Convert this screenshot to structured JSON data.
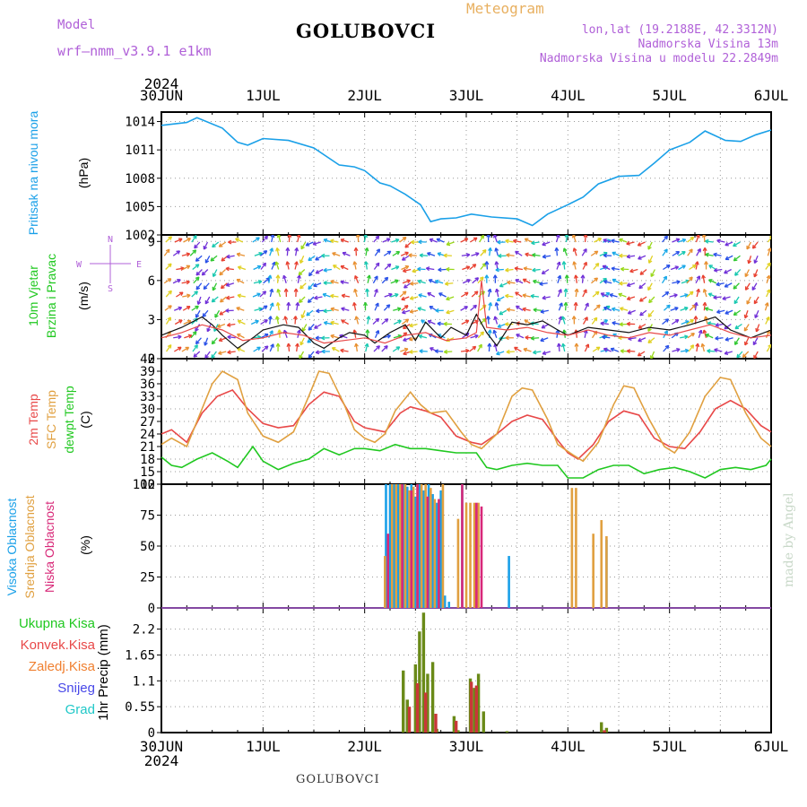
{
  "header": {
    "model_label": "Model",
    "model_name": "wrf—nmm_v3.9.1  e1km",
    "station": "GOLUBOVCI",
    "meteogram": "Meteogram",
    "lonlat": "lon,lat (19.2188E, 42.3312N)",
    "elevation": "Nadmorska Visina 13m",
    "elevation_model": "Nadmorska Visina u modelu 22.2849m"
  },
  "footer": {
    "station": "GOLUBOVCI",
    "credit": "made by Angel"
  },
  "time_axis": {
    "year": "2024",
    "ticks": [
      "30JUN",
      "1JUL",
      "2JUL",
      "3JUL",
      "4JUL",
      "5JUL",
      "6JUL"
    ]
  },
  "colors": {
    "pressure": "#1aa0e8",
    "temp2m": "#e84848",
    "sfc_temp": "#e0a040",
    "dewpoint": "#20c820",
    "high_cloud": "#1aa0e8",
    "mid_cloud": "#e0a040",
    "low_cloud": "#d82878",
    "total_precip": "#6a8a18",
    "conv_precip": "#c83838",
    "wind_speed": "#101010",
    "wind_gust": "#e84848",
    "axis_label_magenta": "#b060d8"
  },
  "panels": {
    "pressure": {
      "side_labels": [
        {
          "text": "Pritisak na nivou mora",
          "color": "#1aa0e8"
        }
      ],
      "unit": "(hPa)"
    },
    "wind": {
      "side_labels": [
        {
          "text": "10m Vjetar",
          "color": "#20c820"
        },
        {
          "text": "Brzina i Pravac",
          "color": "#20c820"
        }
      ],
      "unit": "(m/s)",
      "compass": {
        "n": "N",
        "s": "S",
        "w": "W",
        "e": "E"
      }
    },
    "temperature": {
      "side_labels": [
        {
          "text": "2m Temp",
          "color": "#e84848"
        },
        {
          "text": "SFC Temp",
          "color": "#e0a040"
        },
        {
          "text": "dewpt Temp",
          "color": "#20c820"
        }
      ],
      "unit": "(C)"
    },
    "cloud": {
      "side_labels": [
        {
          "text": "Visoka Oblacnost",
          "color": "#1aa0e8"
        },
        {
          "text": "Srednja Oblacnost",
          "color": "#e0a040"
        },
        {
          "text": "Niska Oblacnost",
          "color": "#d82878"
        }
      ],
      "unit": "(%)"
    },
    "precip": {
      "legend": [
        {
          "text": "Ukupna Kisa",
          "color": "#20c820"
        },
        {
          "text": "Konvek.Kisa",
          "color": "#e84848"
        },
        {
          "text": "Zaledj.Kisa",
          "color": "#f08030"
        },
        {
          "text": "Snijeg",
          "color": "#4848e8"
        },
        {
          "text": "Grad",
          "color": "#20c8c8"
        }
      ],
      "unit": "1hr Precip (mm)"
    }
  },
  "chart_data": [
    {
      "type": "line",
      "panel": "pressure",
      "x_unit": "days since 30JUN 00UTC",
      "ylim": [
        1002,
        1015
      ],
      "yticks": [
        1002,
        1005,
        1008,
        1011,
        1014
      ],
      "grid": true,
      "series": [
        {
          "name": "Pritisak na nivou mora",
          "color": "#1aa0e8",
          "x": [
            0,
            0.25,
            0.35,
            0.6,
            0.75,
            0.85,
            1.0,
            1.25,
            1.5,
            1.75,
            1.9,
            2.0,
            2.15,
            2.25,
            2.4,
            2.55,
            2.65,
            2.75,
            2.9,
            3.05,
            3.25,
            3.5,
            3.65,
            3.8,
            4.0,
            4.15,
            4.3,
            4.5,
            4.7,
            4.85,
            5.0,
            5.2,
            5.35,
            5.55,
            5.7,
            5.85,
            6.0
          ],
          "y": [
            1013.6,
            1013.9,
            1014.4,
            1013.3,
            1011.8,
            1011.5,
            1012.2,
            1012.0,
            1011.2,
            1009.4,
            1009.2,
            1008.8,
            1007.5,
            1007.2,
            1006.3,
            1005.2,
            1003.4,
            1003.7,
            1003.8,
            1004.2,
            1003.9,
            1003.7,
            1003.0,
            1004.2,
            1005.2,
            1006.0,
            1007.4,
            1008.2,
            1008.3,
            1009.6,
            1011.0,
            1011.8,
            1013.0,
            1012.0,
            1011.9,
            1012.6,
            1013.1
          ]
        }
      ]
    },
    {
      "type": "line",
      "panel": "wind",
      "x_unit": "days since 30JUN 00UTC",
      "ylim": [
        0,
        9.5
      ],
      "yticks": [
        0,
        3,
        6,
        9
      ],
      "grid": true,
      "series": [
        {
          "name": "wind speed",
          "color": "#101010",
          "x": [
            0,
            0.2,
            0.4,
            0.5,
            0.6,
            0.75,
            0.9,
            1.0,
            1.2,
            1.35,
            1.5,
            1.6,
            1.75,
            1.85,
            2.0,
            2.1,
            2.25,
            2.4,
            2.5,
            2.6,
            2.75,
            2.85,
            3.0,
            3.1,
            3.2,
            3.3,
            3.45,
            3.6,
            3.75,
            3.9,
            4.0,
            4.2,
            4.4,
            4.6,
            4.8,
            5.0,
            5.2,
            5.45,
            5.6,
            5.8,
            6.0
          ],
          "y": [
            1.8,
            2.4,
            3.2,
            2.6,
            1.8,
            0.8,
            1.6,
            2.2,
            2.6,
            2.4,
            1.2,
            0.8,
            1.6,
            2.0,
            1.8,
            1.2,
            2.0,
            2.6,
            1.4,
            2.8,
            1.6,
            2.4,
            1.8,
            3.4,
            2.0,
            1.0,
            2.8,
            2.6,
            2.9,
            2.2,
            1.8,
            2.4,
            2.2,
            2.0,
            2.4,
            2.2,
            2.6,
            3.2,
            2.2,
            1.6,
            2.2
          ]
        },
        {
          "name": "wind gust",
          "color": "#e84848",
          "x": [
            0,
            0.2,
            0.4,
            0.6,
            0.8,
            1.0,
            1.2,
            1.4,
            1.6,
            1.8,
            2.0,
            2.2,
            2.4,
            2.6,
            2.8,
            3.0,
            3.1,
            3.15,
            3.2,
            3.4,
            3.6,
            3.8,
            4.0,
            4.2,
            4.4,
            4.6,
            4.8,
            5.0,
            5.2,
            5.4,
            5.6,
            5.8,
            6.0
          ],
          "y": [
            1.6,
            2.0,
            2.6,
            2.2,
            1.4,
            1.6,
            2.0,
            1.8,
            1.2,
            1.4,
            1.6,
            1.2,
            1.8,
            2.0,
            1.4,
            1.6,
            2.0,
            6.0,
            2.4,
            2.2,
            2.4,
            2.0,
            1.8,
            2.2,
            1.8,
            1.6,
            2.0,
            1.8,
            2.2,
            2.6,
            2.0,
            1.6,
            1.8
          ]
        }
      ]
    },
    {
      "type": "line",
      "panel": "temperature",
      "x_unit": "days since 30JUN 00UTC",
      "ylim": [
        12,
        42
      ],
      "yticks": [
        12,
        15,
        18,
        21,
        24,
        27,
        30,
        33,
        36,
        39,
        42
      ],
      "grid": true,
      "series": [
        {
          "name": "2m Temp",
          "color": "#e84848",
          "x": [
            0,
            0.1,
            0.25,
            0.4,
            0.55,
            0.7,
            0.85,
            1.0,
            1.15,
            1.3,
            1.45,
            1.6,
            1.75,
            1.9,
            2.0,
            2.1,
            2.2,
            2.35,
            2.45,
            2.6,
            2.75,
            2.9,
            3.05,
            3.15,
            3.3,
            3.45,
            3.6,
            3.75,
            3.9,
            4.0,
            4.1,
            4.25,
            4.4,
            4.55,
            4.7,
            4.85,
            5.0,
            5.15,
            5.3,
            5.45,
            5.6,
            5.75,
            5.9,
            6.0
          ],
          "y": [
            24,
            25,
            22,
            29,
            33,
            34.5,
            30,
            26.5,
            25.5,
            26,
            31,
            34,
            33,
            27,
            25.5,
            25,
            24.5,
            29,
            30.5,
            29.5,
            28,
            23.5,
            22,
            21.5,
            24,
            27,
            28.5,
            27.5,
            22.5,
            19.5,
            18,
            21.5,
            27,
            29.5,
            28.5,
            23,
            21,
            20.5,
            24.5,
            30,
            32,
            30,
            26,
            24.5
          ]
        },
        {
          "name": "SFC Temp",
          "color": "#e0a040",
          "x": [
            0,
            0.1,
            0.25,
            0.4,
            0.5,
            0.6,
            0.75,
            0.85,
            1.0,
            1.15,
            1.3,
            1.45,
            1.55,
            1.65,
            1.8,
            1.9,
            2.0,
            2.1,
            2.2,
            2.3,
            2.45,
            2.55,
            2.65,
            2.8,
            2.95,
            3.05,
            3.15,
            3.3,
            3.45,
            3.55,
            3.65,
            3.8,
            3.9,
            4.05,
            4.15,
            4.3,
            4.45,
            4.55,
            4.65,
            4.8,
            4.95,
            5.05,
            5.2,
            5.35,
            5.5,
            5.6,
            5.75,
            5.9,
            6.0
          ],
          "y": [
            21.5,
            23,
            21,
            30,
            36,
            39,
            37,
            29,
            23.5,
            22,
            24.5,
            33,
            39,
            38.5,
            31,
            25,
            23,
            22,
            24,
            29.5,
            34,
            31,
            29,
            29.5,
            24.5,
            21.5,
            20.5,
            24,
            33,
            35,
            34.5,
            27.5,
            21.5,
            19,
            17.5,
            22,
            31,
            35.5,
            35,
            27.5,
            21,
            19.5,
            24.5,
            33,
            37.5,
            37,
            29,
            23,
            21
          ]
        },
        {
          "name": "dewpt Temp",
          "color": "#20c820",
          "x": [
            0,
            0.1,
            0.2,
            0.35,
            0.5,
            0.65,
            0.75,
            0.9,
            1.0,
            1.15,
            1.3,
            1.45,
            1.6,
            1.75,
            1.9,
            2.0,
            2.15,
            2.3,
            2.45,
            2.6,
            2.75,
            2.9,
            3.0,
            3.1,
            3.2,
            3.3,
            3.45,
            3.6,
            3.75,
            3.9,
            4.0,
            4.15,
            4.3,
            4.45,
            4.6,
            4.75,
            4.9,
            5.05,
            5.2,
            5.35,
            5.5,
            5.65,
            5.8,
            5.95,
            6.0
          ],
          "y": [
            18.5,
            16.5,
            16,
            18,
            19.5,
            17.5,
            16,
            21,
            17.5,
            15.5,
            17,
            18,
            20.5,
            19,
            20.5,
            20.5,
            20,
            21.5,
            20.5,
            20.5,
            20,
            19.5,
            19.5,
            19.5,
            16,
            15.5,
            16.5,
            17,
            16.5,
            16.5,
            13.5,
            13.5,
            15.5,
            16.5,
            16.5,
            14.5,
            15.5,
            16,
            15,
            13.5,
            15.5,
            16,
            15.5,
            16.5,
            18
          ]
        }
      ]
    },
    {
      "type": "bar",
      "panel": "cloud",
      "x_unit": "days since 30JUN 00UTC",
      "ylim": [
        0,
        100
      ],
      "yticks": [
        0,
        25,
        50,
        75,
        100
      ],
      "grid": true,
      "series": [
        {
          "name": "Visoka Oblacnost",
          "color": "#1aa0e8",
          "x": [
            2.21,
            2.25,
            2.29,
            2.33,
            2.38,
            2.42,
            2.46,
            2.5,
            2.54,
            2.58,
            2.63,
            2.67,
            2.71,
            2.75,
            2.79,
            2.83,
            2.96,
            3.42,
            4.38
          ],
          "y": [
            100,
            100,
            100,
            100,
            100,
            98,
            100,
            90,
            100,
            95,
            100,
            92,
            85,
            95,
            10,
            5,
            100,
            42,
            55
          ]
        },
        {
          "name": "Srednja Oblacnost",
          "color": "#e0a040",
          "x": [
            2.2,
            2.27,
            2.31,
            2.35,
            2.4,
            2.44,
            2.48,
            2.52,
            2.56,
            2.6,
            2.65,
            2.69,
            2.77,
            2.92,
            3.0,
            3.04,
            3.08,
            3.12,
            4.04,
            4.08,
            4.25,
            4.33,
            4.38
          ],
          "y": [
            42,
            100,
            100,
            100,
            100,
            95,
            98,
            100,
            100,
            100,
            97,
            88,
            100,
            72,
            85,
            85,
            85,
            85,
            97,
            97,
            60,
            71,
            58
          ]
        },
        {
          "name": "Niska Oblacnost",
          "color": "#d82878",
          "x": [
            2.23,
            2.37,
            2.46,
            2.52,
            2.62,
            2.73,
            2.96,
            3.1,
            3.15
          ],
          "y": [
            60,
            100,
            95,
            100,
            90,
            88,
            100,
            85,
            82
          ]
        }
      ]
    },
    {
      "type": "bar",
      "panel": "precip",
      "x_unit": "days since 30JUN 00UTC",
      "ylim": [
        0,
        2.65
      ],
      "yticks": [
        0,
        0.55,
        1.1,
        1.65,
        2.2
      ],
      "ytick_labels": [
        "0",
        "0.55",
        "1.1",
        "1.65",
        "2.2"
      ],
      "grid": true,
      "series": [
        {
          "name": "Ukupna Kisa",
          "color": "#6a8a18",
          "x": [
            2.38,
            2.42,
            2.5,
            2.54,
            2.58,
            2.62,
            2.67,
            2.71,
            2.88,
            2.92,
            3.04,
            3.08,
            3.12,
            3.17,
            3.4,
            4.33,
            4.38
          ],
          "y": [
            1.32,
            0.7,
            1.45,
            2.15,
            2.55,
            1.25,
            1.5,
            0.08,
            0.35,
            0.05,
            1.15,
            0.95,
            1.25,
            0.45,
            0.03,
            0.22,
            0.1
          ]
        },
        {
          "name": "Konvek.Kisa",
          "color": "#c83838",
          "x": [
            2.44,
            2.52,
            2.6,
            2.7,
            2.9,
            3.05,
            3.1,
            4.36
          ],
          "y": [
            0.55,
            1.05,
            0.85,
            0.4,
            0.25,
            1.08,
            1.0,
            0.05
          ]
        }
      ]
    }
  ]
}
